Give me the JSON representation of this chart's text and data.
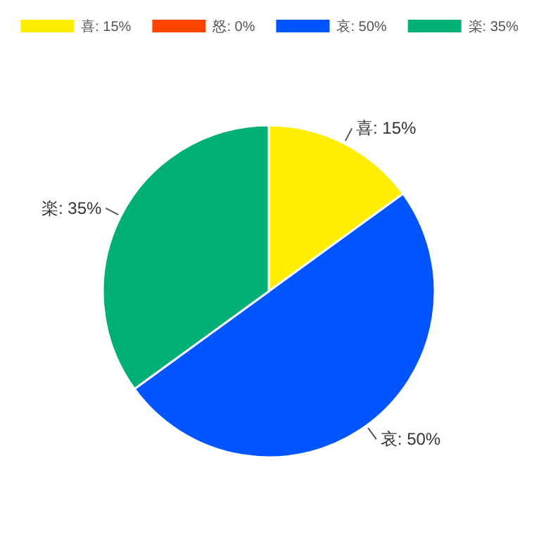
{
  "chart_data": {
    "type": "pie",
    "categories": [
      "喜",
      "怒",
      "哀",
      "楽"
    ],
    "values": [
      15,
      0,
      50,
      35
    ],
    "value_labels": [
      ": 15%",
      ": 0%",
      ": 50%",
      ": 35%"
    ],
    "colors": [
      "#ffee00",
      "#ff4400",
      "#0055ff",
      "#00b077"
    ],
    "legend": "top"
  }
}
